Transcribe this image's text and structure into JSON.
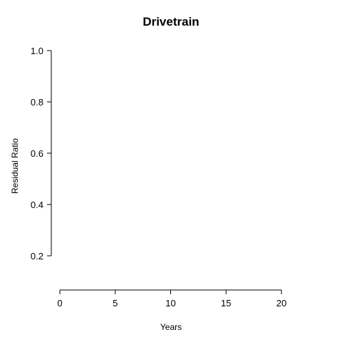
{
  "chart_data": {
    "type": "line",
    "title": "Drivetrain",
    "xlabel": "Years",
    "ylabel": "Residual Ratio",
    "xlim": [
      0,
      20
    ],
    "ylim": [
      0.2,
      1.0
    ],
    "x_ticks": [
      0,
      5,
      10,
      15,
      20
    ],
    "y_ticks": [
      0.2,
      0.4,
      0.6,
      0.8,
      1.0
    ],
    "x_tick_labels": [
      "0",
      "5",
      "10",
      "15",
      "20"
    ],
    "y_tick_labels": [
      "0.2",
      "0.4",
      "0.6",
      "0.8",
      "1.0"
    ],
    "series": [],
    "grid": false,
    "legend": "none"
  }
}
